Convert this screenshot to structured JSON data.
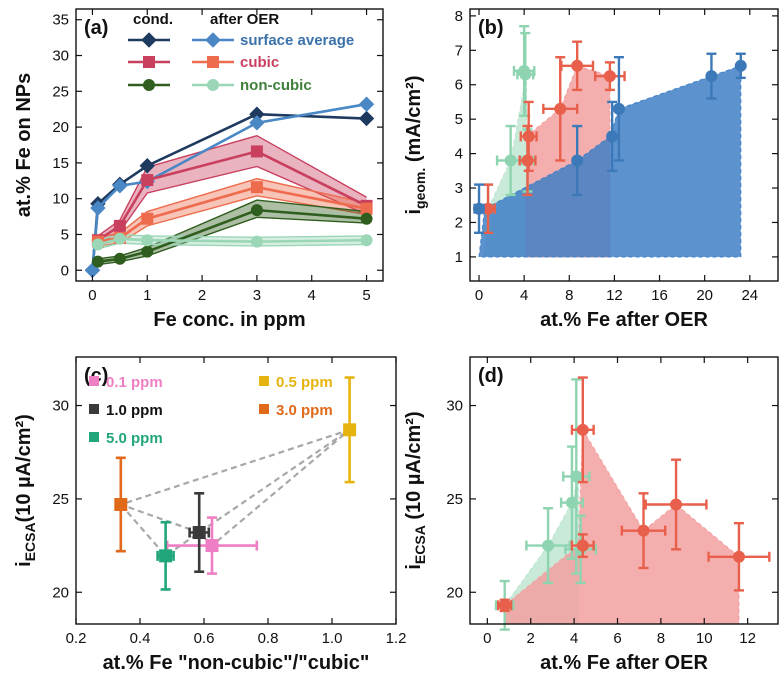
{
  "chart_data": [
    {
      "panel": "(a)",
      "type": "line",
      "xlabel": "Fe conc. in ppm",
      "ylabel": "at.% Fe on NPs",
      "xlim": [
        -0.3,
        5.3
      ],
      "ylim": [
        -1.5,
        36.5
      ],
      "xticks": [
        0,
        1,
        2,
        3,
        4,
        5
      ],
      "yticks": [
        0,
        5,
        10,
        15,
        20,
        25,
        30,
        35
      ],
      "legend_headers": {
        "cond": "cond.",
        "after": "after OER"
      },
      "legend_labels": [
        "surface average",
        "cubic",
        "non-cubic"
      ],
      "series": [
        {
          "name": "surface average (cond.)",
          "color": "#1f3a5f",
          "marker": "diamond",
          "x": [
            0,
            0.1,
            0.5,
            1,
            3,
            5
          ],
          "y": [
            0,
            9.3,
            12.0,
            14.6,
            21.8,
            21.2
          ]
        },
        {
          "name": "surface average (after OER)",
          "color": "#4a87c5",
          "marker": "diamond",
          "x": [
            0,
            0.1,
            0.5,
            1,
            3,
            5
          ],
          "y": [
            0,
            8.7,
            11.8,
            12.4,
            20.6,
            23.2
          ]
        },
        {
          "name": "cubic (cond.)",
          "color": "#c9405f",
          "marker": "square",
          "x": [
            0.1,
            0.5,
            1,
            3,
            5
          ],
          "y": [
            4.2,
            6.2,
            12.6,
            16.6,
            9.0
          ],
          "band": [
            [
              3.6,
              4.8
            ],
            [
              5.4,
              7.0
            ],
            [
              10.8,
              14.4
            ],
            [
              14.5,
              18.8
            ],
            [
              7.8,
              10.2
            ]
          ]
        },
        {
          "name": "cubic (after OER)",
          "color": "#ee6c4d",
          "marker": "square",
          "x": [
            0.1,
            0.5,
            1,
            3,
            5
          ],
          "y": [
            4.0,
            4.5,
            7.2,
            11.6,
            8.6
          ],
          "band": [
            [
              3.4,
              4.6
            ],
            [
              3.8,
              5.2
            ],
            [
              6.2,
              8.2
            ],
            [
              10.4,
              12.8
            ],
            [
              7.8,
              9.4
            ]
          ]
        },
        {
          "name": "non-cubic (cond.)",
          "color": "#2f5e1e",
          "marker": "circle",
          "x": [
            0.1,
            0.5,
            1,
            3,
            5
          ],
          "y": [
            1.2,
            1.6,
            2.6,
            8.4,
            7.2
          ],
          "band": [
            [
              0.8,
              1.6
            ],
            [
              1.2,
              2.0
            ],
            [
              2.0,
              3.2
            ],
            [
              7.4,
              9.8
            ],
            [
              6.6,
              8.2
            ]
          ]
        },
        {
          "name": "non-cubic (after OER)",
          "color": "#9bd7b6",
          "marker": "circle",
          "x": [
            0.1,
            0.5,
            1,
            3,
            5
          ],
          "y": [
            3.6,
            4.4,
            4.2,
            4.0,
            4.2
          ],
          "band": [
            [
              3.0,
              4.2
            ],
            [
              3.8,
              5.0
            ],
            [
              3.6,
              4.8
            ],
            [
              3.4,
              4.6
            ],
            [
              3.6,
              4.8
            ]
          ]
        }
      ]
    },
    {
      "panel": "(b)",
      "type": "scatter",
      "xlabel": "at.% Fe after OER",
      "ylabel_main": "i",
      "ylabel_sub": "geom.",
      "ylabel_unit": " (mA/cm²)",
      "xlim": [
        -0.8,
        26.5
      ],
      "ylim": [
        0.3,
        8.2
      ],
      "xticks": [
        0,
        4,
        8,
        12,
        16,
        20,
        24
      ],
      "yticks": [
        1,
        2,
        3,
        4,
        5,
        6,
        7,
        8
      ],
      "regions": [
        {
          "name": "non-cubic region",
          "color": "#bfe6d2",
          "x": [
            0.4,
            0.8,
            2.8,
            4.2,
            4.2,
            0.4
          ],
          "y": [
            1,
            2.4,
            3.8,
            6.3,
            1,
            1
          ]
        },
        {
          "name": "cubic region",
          "color": "#f2a0a0",
          "x": [
            4.2,
            4.2,
            7.2,
            8.7,
            11.6,
            11.6,
            4.2
          ],
          "y": [
            1,
            4.5,
            5.3,
            6.55,
            6.25,
            1,
            1
          ]
        },
        {
          "name": "surface average region",
          "color": "#3f7fc6",
          "x": [
            0,
            0.5,
            8.7,
            11.6,
            12.4,
            20.6,
            23.2,
            23.2,
            0
          ],
          "y": [
            1,
            2.4,
            3.8,
            4.5,
            5.3,
            6.25,
            6.55,
            1,
            1
          ]
        }
      ],
      "series": [
        {
          "name": "non-cubic",
          "color": "#8fd4b0",
          "x": [
            0.8,
            2.8,
            4.0,
            4.1,
            4.3
          ],
          "y": [
            2.4,
            3.8,
            6.4,
            6.3,
            3.8
          ],
          "xerr": [
            0.6,
            1.2,
            0.9,
            0.7,
            0.6
          ],
          "yerr": [
            0.7,
            1.0,
            1.3,
            1.2,
            0.9
          ]
        },
        {
          "name": "cubic",
          "color": "#e85f4b",
          "x": [
            0.8,
            4.3,
            4.4,
            7.2,
            8.7,
            11.6
          ],
          "y": [
            2.4,
            3.8,
            4.5,
            5.3,
            6.55,
            6.25
          ],
          "xerr": [
            0.6,
            0.7,
            0.7,
            1.5,
            1.4,
            1.3
          ],
          "yerr": [
            0.7,
            1.0,
            1.0,
            1.5,
            0.7,
            0.4
          ]
        },
        {
          "name": "surface average",
          "color": "#3c79b8",
          "x": [
            0,
            8.7,
            11.8,
            12.4,
            20.6,
            23.2
          ],
          "y": [
            2.4,
            3.8,
            4.5,
            5.3,
            6.25,
            6.55
          ],
          "xerr": [
            0.4,
            0,
            0,
            0,
            0,
            0
          ],
          "yerr": [
            0.7,
            1.0,
            1.0,
            1.5,
            0.65,
            0.35
          ]
        }
      ]
    },
    {
      "panel": "(c)",
      "type": "scatter",
      "xlabel": "at.% Fe \"non-cubic\"/\"cubic\"",
      "ylabel_main": "i",
      "ylabel_sub": "ECSA",
      "ylabel_unit": "(10 µA/cm²)",
      "xlim": [
        0.2,
        1.2
      ],
      "ylim": [
        18.3,
        32.6
      ],
      "xticks": [
        0.2,
        0.4,
        0.6,
        0.8,
        1.0,
        1.2
      ],
      "yticks": [
        20,
        25,
        30
      ],
      "connector_order": [
        "3.0 ppm",
        "5.0 ppm",
        "1.0 ppm",
        "0.5 ppm",
        "3.0 ppm",
        "1.0 ppm",
        "0.1 ppm",
        "0.5 ppm"
      ],
      "series": [
        {
          "name": "0.1 ppm",
          "color": "#ef7fc4",
          "x": 0.625,
          "y": 22.5,
          "xerr": 0.14,
          "yerr": 1.5
        },
        {
          "name": "0.5 ppm",
          "color": "#e6b40f",
          "x": 1.055,
          "y": 28.7,
          "xerr": 0.015,
          "yerr": 2.8
        },
        {
          "name": "1.0 ppm",
          "color": "#3a3a3a",
          "x": 0.585,
          "y": 23.2,
          "xerr": 0.03,
          "yerr": 2.1
        },
        {
          "name": "3.0 ppm",
          "color": "#e06a1a",
          "x": 0.34,
          "y": 24.7,
          "xerr": 0.01,
          "yerr": 2.5
        },
        {
          "name": "5.0 ppm",
          "color": "#20a67a",
          "x": 0.48,
          "y": 21.95,
          "xerr": 0.025,
          "yerr": 1.8
        }
      ]
    },
    {
      "panel": "(d)",
      "type": "scatter",
      "xlabel": "at.% Fe after OER",
      "ylabel_main": "i",
      "ylabel_sub": "ECSA",
      "ylabel_unit": " (10 µA/cm²)",
      "xlim": [
        -0.8,
        13.4
      ],
      "ylim": [
        18.3,
        32.6
      ],
      "xticks": [
        0,
        2,
        4,
        6,
        8,
        10,
        12
      ],
      "yticks": [
        20,
        25,
        30
      ],
      "regions": [
        {
          "name": "non-cubic region",
          "color": "#bfe6d2",
          "x": [
            0.8,
            2.8,
            3.9,
            4.2,
            4.2,
            0.8
          ],
          "y": [
            19.3,
            22.5,
            24.8,
            26.2,
            18.3,
            18.3
          ]
        },
        {
          "name": "cubic region",
          "color": "#f2a0a0",
          "x": [
            0.8,
            4.2,
            4.4,
            7.2,
            8.7,
            11.6,
            11.6,
            0.8
          ],
          "y": [
            19.3,
            22.5,
            28.7,
            23.3,
            24.7,
            21.9,
            18.3,
            18.3
          ]
        }
      ],
      "series": [
        {
          "name": "non-cubic",
          "color": "#8fd4b0",
          "x": [
            0.8,
            2.8,
            3.9,
            4.1,
            4.3
          ],
          "y": [
            19.3,
            22.5,
            24.8,
            26.2,
            22.3
          ],
          "xerr": [
            0.4,
            1.0,
            0.5,
            0.6,
            0.7
          ],
          "yerr": [
            1.3,
            2.0,
            3.0,
            5.2,
            1.8
          ]
        },
        {
          "name": "cubic",
          "color": "#e85f4b",
          "x": [
            0.8,
            4.4,
            4.4,
            7.2,
            8.7,
            11.6
          ],
          "y": [
            19.3,
            28.7,
            22.5,
            23.3,
            24.7,
            21.9
          ],
          "xerr": [
            0.3,
            0.5,
            0.5,
            1.0,
            1.4,
            1.4
          ],
          "yerr": [
            0.3,
            2.8,
            0.6,
            2.0,
            2.4,
            1.8
          ]
        }
      ]
    }
  ]
}
